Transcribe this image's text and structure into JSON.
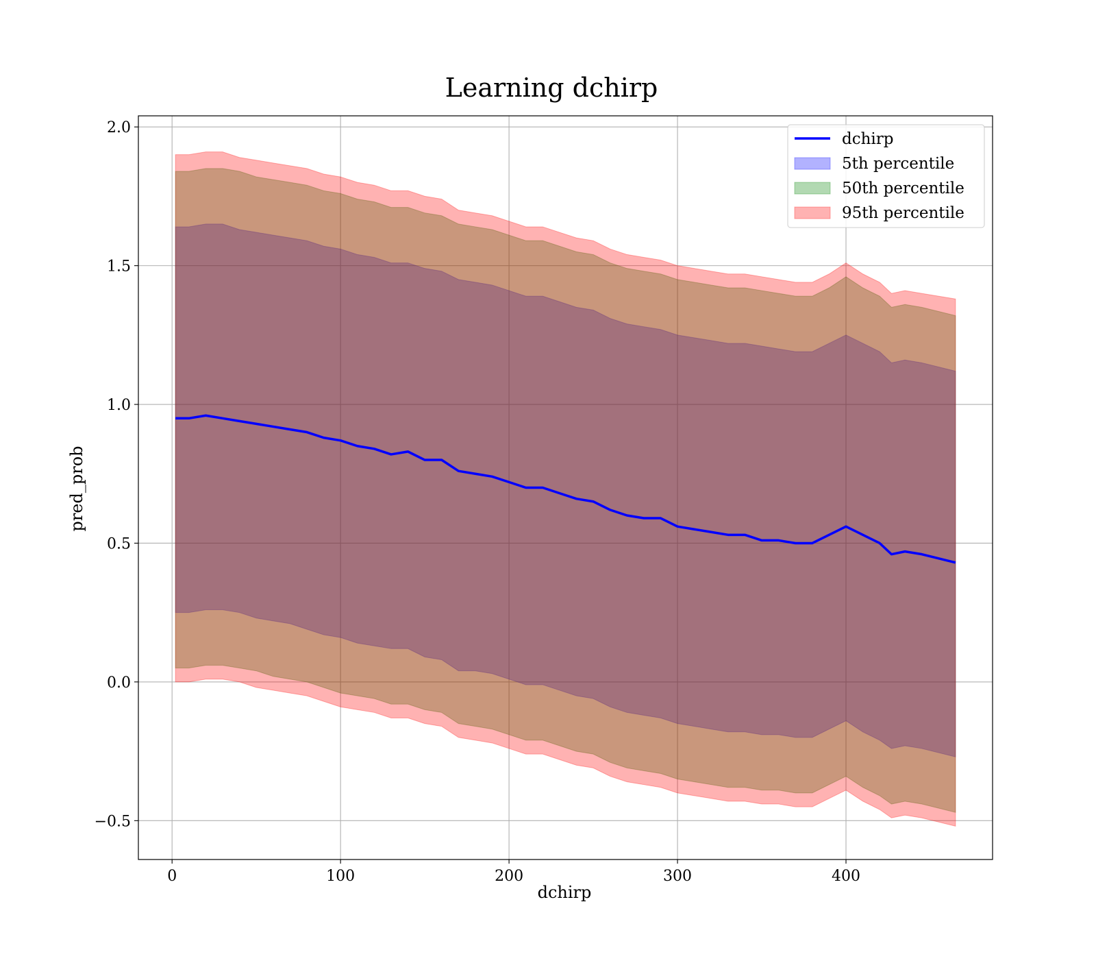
{
  "chart_data": {
    "type": "area",
    "title": "Learning dchirp",
    "xlabel": "dchirp",
    "ylabel": "pred_prob",
    "xlim": [
      -20,
      487
    ],
    "ylim": [
      -0.64,
      2.04
    ],
    "xticks": [
      0,
      100,
      200,
      300,
      400
    ],
    "xtick_labels": [
      "0",
      "100",
      "200",
      "300",
      "400"
    ],
    "yticks": [
      -0.5,
      0.0,
      0.5,
      1.0,
      1.5,
      2.0
    ],
    "ytick_labels": [
      "−0.5",
      "0.0",
      "0.5",
      "1.0",
      "1.5",
      "2.0"
    ],
    "grid": true,
    "legend_position": "top-right",
    "x": [
      2,
      10,
      20,
      30,
      40,
      50,
      60,
      70,
      80,
      90,
      100,
      110,
      120,
      130,
      140,
      150,
      160,
      170,
      180,
      190,
      200,
      210,
      220,
      230,
      240,
      250,
      260,
      270,
      280,
      290,
      300,
      310,
      320,
      330,
      340,
      350,
      360,
      370,
      380,
      390,
      400,
      410,
      420,
      427,
      435,
      445,
      465
    ],
    "series": [
      {
        "name": "dchirp",
        "kind": "line",
        "color": "#0000ff",
        "values": [
          0.95,
          0.95,
          0.96,
          0.95,
          0.94,
          0.93,
          0.92,
          0.91,
          0.9,
          0.88,
          0.87,
          0.85,
          0.84,
          0.82,
          0.83,
          0.8,
          0.8,
          0.76,
          0.75,
          0.74,
          0.72,
          0.7,
          0.7,
          0.68,
          0.66,
          0.65,
          0.62,
          0.6,
          0.59,
          0.59,
          0.56,
          0.55,
          0.54,
          0.53,
          0.53,
          0.51,
          0.51,
          0.5,
          0.5,
          0.53,
          0.56,
          0.53,
          0.5,
          0.46,
          0.47,
          0.46,
          0.43
        ]
      },
      {
        "name": "5th percentile",
        "kind": "band",
        "color": "#0000ff",
        "lower": [
          0.25,
          0.25,
          0.26,
          0.26,
          0.25,
          0.23,
          0.22,
          0.21,
          0.19,
          0.17,
          0.16,
          0.14,
          0.13,
          0.12,
          0.12,
          0.09,
          0.08,
          0.04,
          0.04,
          0.03,
          0.01,
          -0.01,
          -0.01,
          -0.03,
          -0.05,
          -0.06,
          -0.09,
          -0.11,
          -0.12,
          -0.13,
          -0.15,
          -0.16,
          -0.17,
          -0.18,
          -0.18,
          -0.19,
          -0.19,
          -0.2,
          -0.2,
          -0.17,
          -0.14,
          -0.18,
          -0.21,
          -0.24,
          -0.23,
          -0.24,
          -0.27
        ],
        "upper": [
          1.64,
          1.64,
          1.65,
          1.65,
          1.63,
          1.62,
          1.61,
          1.6,
          1.59,
          1.57,
          1.56,
          1.54,
          1.53,
          1.51,
          1.51,
          1.49,
          1.48,
          1.45,
          1.44,
          1.43,
          1.41,
          1.39,
          1.39,
          1.37,
          1.35,
          1.34,
          1.31,
          1.29,
          1.28,
          1.27,
          1.25,
          1.24,
          1.23,
          1.22,
          1.22,
          1.21,
          1.2,
          1.19,
          1.19,
          1.22,
          1.25,
          1.22,
          1.19,
          1.15,
          1.16,
          1.15,
          1.12
        ]
      },
      {
        "name": "50th percentile",
        "kind": "band",
        "color": "#008000",
        "lower": [
          0.05,
          0.05,
          0.06,
          0.06,
          0.05,
          0.04,
          0.02,
          0.01,
          0.0,
          -0.02,
          -0.04,
          -0.05,
          -0.06,
          -0.08,
          -0.08,
          -0.1,
          -0.11,
          -0.15,
          -0.16,
          -0.17,
          -0.19,
          -0.21,
          -0.21,
          -0.23,
          -0.25,
          -0.26,
          -0.29,
          -0.31,
          -0.32,
          -0.33,
          -0.35,
          -0.36,
          -0.37,
          -0.38,
          -0.38,
          -0.39,
          -0.39,
          -0.4,
          -0.4,
          -0.37,
          -0.34,
          -0.38,
          -0.41,
          -0.44,
          -0.43,
          -0.44,
          -0.47
        ],
        "upper": [
          1.84,
          1.84,
          1.85,
          1.85,
          1.84,
          1.82,
          1.81,
          1.8,
          1.79,
          1.77,
          1.76,
          1.74,
          1.73,
          1.71,
          1.71,
          1.69,
          1.68,
          1.65,
          1.64,
          1.63,
          1.61,
          1.59,
          1.59,
          1.57,
          1.55,
          1.54,
          1.51,
          1.49,
          1.48,
          1.47,
          1.45,
          1.44,
          1.43,
          1.42,
          1.42,
          1.41,
          1.4,
          1.39,
          1.39,
          1.42,
          1.46,
          1.42,
          1.39,
          1.35,
          1.36,
          1.35,
          1.32
        ]
      },
      {
        "name": "95th percentile",
        "kind": "band",
        "color": "#ff0000",
        "lower": [
          0.0,
          0.0,
          0.01,
          0.01,
          0.0,
          -0.02,
          -0.03,
          -0.04,
          -0.05,
          -0.07,
          -0.09,
          -0.1,
          -0.11,
          -0.13,
          -0.13,
          -0.15,
          -0.16,
          -0.2,
          -0.21,
          -0.22,
          -0.24,
          -0.26,
          -0.26,
          -0.28,
          -0.3,
          -0.31,
          -0.34,
          -0.36,
          -0.37,
          -0.38,
          -0.4,
          -0.41,
          -0.42,
          -0.43,
          -0.43,
          -0.44,
          -0.44,
          -0.45,
          -0.45,
          -0.42,
          -0.39,
          -0.43,
          -0.46,
          -0.49,
          -0.48,
          -0.49,
          -0.52
        ],
        "upper": [
          1.9,
          1.9,
          1.91,
          1.91,
          1.89,
          1.88,
          1.87,
          1.86,
          1.85,
          1.83,
          1.82,
          1.8,
          1.79,
          1.77,
          1.77,
          1.75,
          1.74,
          1.7,
          1.69,
          1.68,
          1.66,
          1.64,
          1.64,
          1.62,
          1.6,
          1.59,
          1.56,
          1.54,
          1.53,
          1.52,
          1.5,
          1.49,
          1.48,
          1.47,
          1.47,
          1.46,
          1.45,
          1.44,
          1.44,
          1.47,
          1.51,
          1.47,
          1.44,
          1.4,
          1.41,
          1.4,
          1.38
        ]
      }
    ]
  }
}
